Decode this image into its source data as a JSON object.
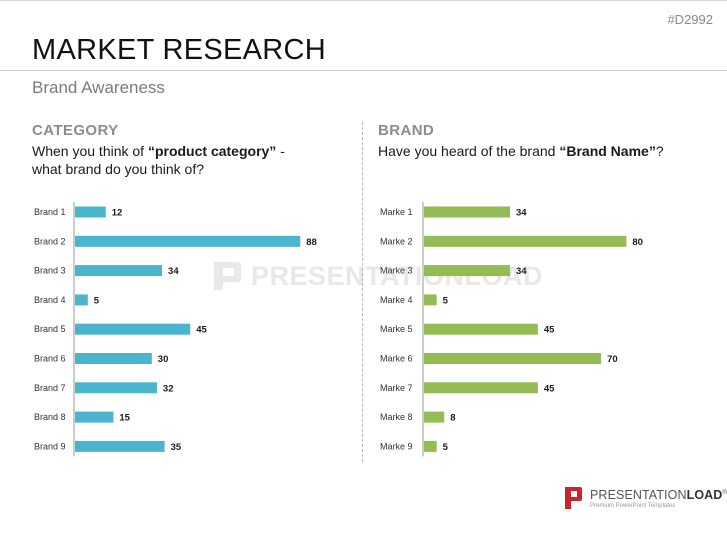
{
  "slide_id": "#D2992",
  "title": "MARKET RESEARCH",
  "subtitle": "Brand Awareness",
  "left": {
    "label": "CATEGORY",
    "question_pre": "When you think of ",
    "question_bold": "“product category”",
    "question_post": " -",
    "question_line2": "what brand do you think of?"
  },
  "right": {
    "label": "BRAND",
    "question_pre": "Have you heard of the brand ",
    "question_bold": "“Brand Name”",
    "question_post": "?"
  },
  "watermark": "PRESENTATIONLOAD",
  "logo": {
    "name_regular": "PRESENTATION",
    "name_bold": "LOAD",
    "mark": "®",
    "tagline": "Premium PowerPoint Templates"
  },
  "colors": {
    "left_bar": "#4ab5cc",
    "right_bar": "#95bb55",
    "logo_red": "#c9252c"
  },
  "chart_data": [
    {
      "type": "bar",
      "orientation": "horizontal",
      "title": "CATEGORY",
      "categories": [
        "Brand 1",
        "Brand 2",
        "Brand 3",
        "Brand 4",
        "Brand 5",
        "Brand 6",
        "Brand 7",
        "Brand 8",
        "Brand 9"
      ],
      "values": [
        12,
        88,
        34,
        5,
        45,
        30,
        32,
        15,
        35
      ],
      "xlim": [
        0,
        100
      ],
      "grid": false,
      "data_labels": true
    },
    {
      "type": "bar",
      "orientation": "horizontal",
      "title": "BRAND",
      "categories": [
        "Marke 1",
        "Marke 2",
        "Marke 3",
        "Marke 4",
        "Marke 5",
        "Marke 6",
        "Marke 7",
        "Marke 8",
        "Marke 9"
      ],
      "values": [
        34,
        80,
        34,
        5,
        45,
        70,
        45,
        8,
        5
      ],
      "xlim": [
        0,
        100
      ],
      "grid": false,
      "data_labels": true
    }
  ]
}
